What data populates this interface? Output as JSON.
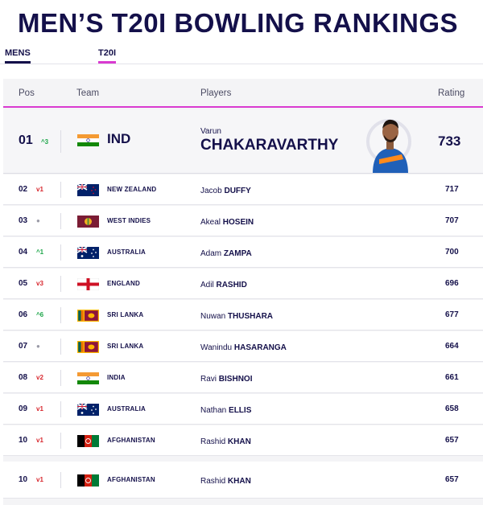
{
  "title": "MEN’S T20I BOWLING RANKINGS",
  "tabs": [
    {
      "label": "MENS"
    },
    {
      "label": "T20I"
    }
  ],
  "columns": {
    "pos": "Pos",
    "team": "Team",
    "players": "Players",
    "rating": "Rating"
  },
  "featured": {
    "pos": "01",
    "move_dir": "up",
    "move_glyph": "^",
    "move": "3",
    "team": "IND",
    "flag": "india",
    "first": "Varun",
    "last": "CHAKARAVARTHY",
    "rating": "733"
  },
  "rows": [
    {
      "pos": "02",
      "move_dir": "down",
      "move_glyph": "v",
      "move": "1",
      "team": "NEW ZEALAND",
      "flag": "nz",
      "first": "Jacob",
      "last": "DUFFY",
      "rating": "717"
    },
    {
      "pos": "03",
      "move_dir": "same",
      "move_glyph": "●",
      "move": "",
      "team": "WEST INDIES",
      "flag": "wi",
      "first": "Akeal",
      "last": "HOSEIN",
      "rating": "707"
    },
    {
      "pos": "04",
      "move_dir": "up",
      "move_glyph": "^",
      "move": "1",
      "team": "AUSTRALIA",
      "flag": "aus",
      "first": "Adam",
      "last": "ZAMPA",
      "rating": "700"
    },
    {
      "pos": "05",
      "move_dir": "down",
      "move_glyph": "v",
      "move": "3",
      "team": "ENGLAND",
      "flag": "eng",
      "first": "Adil",
      "last": "RASHID",
      "rating": "696"
    },
    {
      "pos": "06",
      "move_dir": "up",
      "move_glyph": "^",
      "move": "6",
      "team": "SRI LANKA",
      "flag": "sl",
      "first": "Nuwan",
      "last": "THUSHARA",
      "rating": "677"
    },
    {
      "pos": "07",
      "move_dir": "same",
      "move_glyph": "●",
      "move": "",
      "team": "SRI LANKA",
      "flag": "sl",
      "first": "Wanindu",
      "last": "HASARANGA",
      "rating": "664"
    },
    {
      "pos": "08",
      "move_dir": "down",
      "move_glyph": "v",
      "move": "2",
      "team": "INDIA",
      "flag": "india",
      "first": "Ravi",
      "last": "BISHNOI",
      "rating": "661"
    },
    {
      "pos": "09",
      "move_dir": "down",
      "move_glyph": "v",
      "move": "1",
      "team": "AUSTRALIA",
      "flag": "aus",
      "first": "Nathan",
      "last": "ELLIS",
      "rating": "658"
    },
    {
      "pos": "10",
      "move_dir": "down",
      "move_glyph": "v",
      "move": "1",
      "team": "AFGHANISTAN",
      "flag": "afg",
      "first": "Rashid",
      "last": "KHAN",
      "rating": "657"
    },
    {
      "pos": "10",
      "move_dir": "down",
      "move_glyph": "v",
      "move": "1",
      "team": "AFGHANISTAN",
      "flag": "afg",
      "first": "Rashid",
      "last": "KHAN",
      "rating": "657"
    }
  ],
  "colors": {
    "accent": "#d93ad0",
    "navy": "#14104a",
    "up": "#1ea64a",
    "down": "#d8282f"
  }
}
